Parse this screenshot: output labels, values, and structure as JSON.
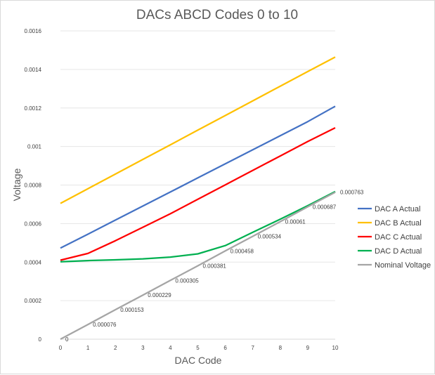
{
  "chart_data": {
    "type": "line",
    "title": "DACs ABCD Codes 0 to 10",
    "xlabel": "DAC Code",
    "ylabel": "Voltage",
    "x": [
      0,
      1,
      2,
      3,
      4,
      5,
      6,
      7,
      8,
      9,
      10
    ],
    "x_tick_labels": [
      "0",
      "1",
      "2",
      "3",
      "4",
      "5",
      "6",
      "7",
      "8",
      "9",
      "10"
    ],
    "ylim": [
      0,
      0.0016
    ],
    "y_tick_labels": [
      "0",
      "0.0002",
      "0.0004",
      "0.0006",
      "0.0008",
      "0.001",
      "0.0012",
      "0.0014",
      "0.0016"
    ],
    "grid": true,
    "legend_position": "right",
    "series": [
      {
        "name": "DAC A Actual",
        "color": "#4472c4",
        "values": [
          0.000473,
          0.000545,
          0.000618,
          0.000691,
          0.000764,
          0.000837,
          0.00091,
          0.000983,
          0.001056,
          0.001129,
          0.001209
        ]
      },
      {
        "name": "DAC B Actual",
        "color": "#ffc000",
        "values": [
          0.000705,
          0.000781,
          0.000857,
          0.000933,
          0.001009,
          0.001085,
          0.001161,
          0.001237,
          0.001313,
          0.001389,
          0.001464
        ]
      },
      {
        "name": "DAC C Actual",
        "color": "#ff0000",
        "values": [
          0.00041,
          0.000445,
          0.000511,
          0.000581,
          0.000651,
          0.000726,
          0.000801,
          0.000876,
          0.000951,
          0.001026,
          0.001097
        ]
      },
      {
        "name": "DAC D Actual",
        "color": "#00b050",
        "values": [
          0.000402,
          0.000408,
          0.000412,
          0.000417,
          0.000426,
          0.000443,
          0.000486,
          0.000555,
          0.000623,
          0.000693,
          0.000766
        ]
      },
      {
        "name": "Nominal Voltage",
        "color": "#a5a5a5",
        "values": [
          0,
          7.6e-05,
          0.000153,
          0.000229,
          0.000305,
          0.000381,
          0.000458,
          0.000534,
          0.00061,
          0.000687,
          0.000763
        ],
        "data_labels": [
          "0",
          "0.000076",
          "0.000153",
          "0.000229",
          "0.000305",
          "0.000381",
          "0.000458",
          "0.000534",
          "0.00061",
          "0.000687",
          "0.000763"
        ]
      }
    ]
  }
}
